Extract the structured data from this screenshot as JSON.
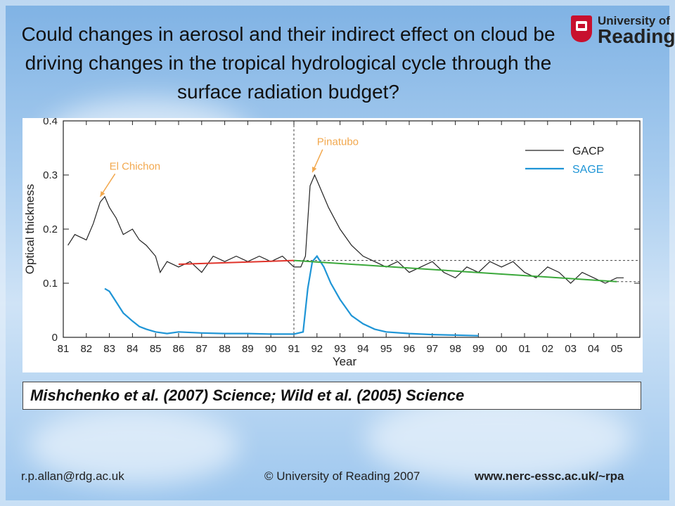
{
  "slide": {
    "title": "Could changes in aerosol and their indirect effect on cloud be driving changes in the tropical hydrological cycle through the surface radiation budget?",
    "logo": {
      "line1": "University of",
      "line2": "Reading"
    },
    "citation": "Mishchenko et al. (2007) Science; Wild et al. (2005) Science",
    "footer": {
      "email": "r.p.allan@rdg.ac.uk",
      "copyright": "© University of Reading 2007",
      "website": "www.nerc-essc.ac.uk/~rpa"
    }
  },
  "chart_data": {
    "type": "line",
    "xlabel": "Year",
    "ylabel": "Optical thickness",
    "xlim": [
      1981,
      2006
    ],
    "ylim": [
      0,
      0.4
    ],
    "x_ticks": [
      1981,
      1982,
      1983,
      1984,
      1985,
      1986,
      1987,
      1988,
      1989,
      1990,
      1991,
      1992,
      1993,
      1994,
      1995,
      1996,
      1997,
      1998,
      1999,
      2000,
      2001,
      2002,
      2003,
      2004,
      2005
    ],
    "x_tick_labels": [
      "81",
      "82",
      "83",
      "84",
      "85",
      "86",
      "87",
      "88",
      "89",
      "90",
      "91",
      "92",
      "93",
      "94",
      "95",
      "96",
      "97",
      "98",
      "99",
      "00",
      "01",
      "02",
      "03",
      "04",
      "05"
    ],
    "y_ticks": [
      0,
      0.1,
      0.2,
      0.3,
      0.4
    ],
    "y_tick_labels": [
      "0",
      "0.1",
      "0.2",
      "0.3",
      "0.4"
    ],
    "legend_position": "top-right",
    "series": [
      {
        "name": "GACP",
        "color": "#222222",
        "x": [
          1981.2,
          1981.5,
          1982.0,
          1982.3,
          1982.6,
          1982.8,
          1983.0,
          1983.3,
          1983.6,
          1984.0,
          1984.3,
          1984.6,
          1985.0,
          1985.2,
          1985.5,
          1986.0,
          1986.5,
          1987.0,
          1987.5,
          1988.0,
          1988.5,
          1989.0,
          1989.5,
          1990.0,
          1990.5,
          1991.0,
          1991.3,
          1991.5,
          1991.7,
          1991.9,
          1992.1,
          1992.5,
          1993.0,
          1993.5,
          1994.0,
          1994.5,
          1995.0,
          1995.5,
          1996.0,
          1996.5,
          1997.0,
          1997.5,
          1998.0,
          1998.5,
          1999.0,
          1999.5,
          2000.0,
          2000.5,
          2001.0,
          2001.5,
          2002.0,
          2002.5,
          2003.0,
          2003.5,
          2004.0,
          2004.5,
          2005.0,
          2005.3
        ],
        "y": [
          0.17,
          0.19,
          0.18,
          0.21,
          0.25,
          0.26,
          0.24,
          0.22,
          0.19,
          0.2,
          0.18,
          0.17,
          0.15,
          0.12,
          0.14,
          0.13,
          0.14,
          0.12,
          0.15,
          0.14,
          0.15,
          0.14,
          0.15,
          0.14,
          0.15,
          0.13,
          0.13,
          0.15,
          0.28,
          0.3,
          0.28,
          0.24,
          0.2,
          0.17,
          0.15,
          0.14,
          0.13,
          0.14,
          0.12,
          0.13,
          0.14,
          0.12,
          0.11,
          0.13,
          0.12,
          0.14,
          0.13,
          0.14,
          0.12,
          0.11,
          0.13,
          0.12,
          0.1,
          0.12,
          0.11,
          0.1,
          0.11,
          0.11
        ]
      },
      {
        "name": "SAGE",
        "color": "#1f95d6",
        "x": [
          1982.8,
          1983.0,
          1983.3,
          1983.6,
          1984.0,
          1984.3,
          1984.6,
          1985.0,
          1985.5,
          1986.0,
          1987.0,
          1988.0,
          1989.0,
          1990.0,
          1991.0,
          1991.4,
          1991.6,
          1991.8,
          1992.0,
          1992.3,
          1992.6,
          1993.0,
          1993.5,
          1994.0,
          1994.5,
          1995.0,
          1996.0,
          1997.0,
          1998.0,
          1999.0
        ],
        "y": [
          0.09,
          0.085,
          0.065,
          0.045,
          0.03,
          0.02,
          0.015,
          0.01,
          0.007,
          0.01,
          0.008,
          0.007,
          0.007,
          0.006,
          0.006,
          0.01,
          0.09,
          0.14,
          0.15,
          0.13,
          0.1,
          0.07,
          0.04,
          0.025,
          0.015,
          0.01,
          0.007,
          0.005,
          0.004,
          0.003
        ]
      }
    ],
    "annotations": [
      {
        "text": "El Chichon",
        "color": "#f2a84e",
        "x": 1983.0,
        "y": 0.31,
        "arrow_to": [
          1982.6,
          0.26
        ]
      },
      {
        "text": "Pinatubo",
        "color": "#f2a84e",
        "x": 1992.0,
        "y": 0.355,
        "arrow_to": [
          1991.8,
          0.305
        ]
      }
    ],
    "trend_lines": [
      {
        "color": "#e0332a",
        "x": [
          1986,
          1991
        ],
        "y": [
          0.135,
          0.142
        ]
      },
      {
        "color": "#3aa83a",
        "x": [
          1991,
          2005
        ],
        "y": [
          0.142,
          0.103
        ]
      }
    ],
    "reference_lines": [
      {
        "orientation": "vertical",
        "x": 1991
      },
      {
        "orientation": "horizontal",
        "y": 0.142,
        "x": [
          1991,
          2006
        ]
      },
      {
        "orientation": "horizontal",
        "y": 0.103,
        "x": [
          2005,
          2006
        ]
      }
    ]
  }
}
